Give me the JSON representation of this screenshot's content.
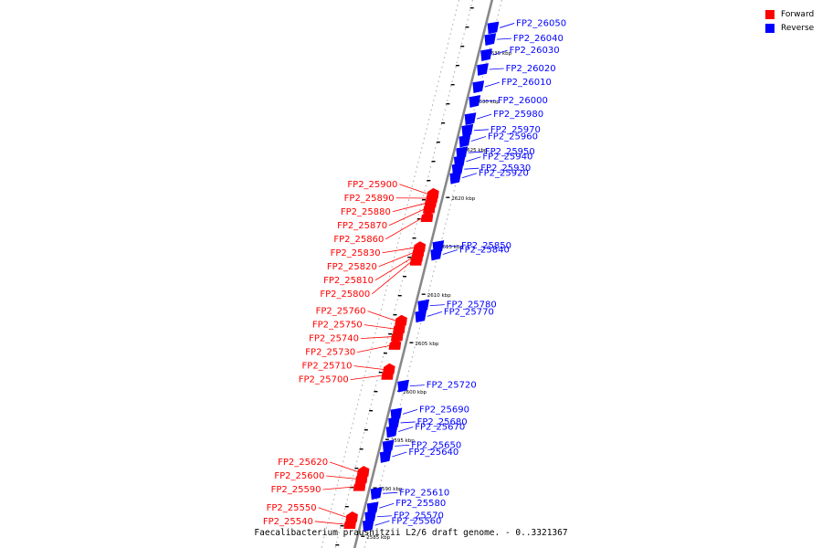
{
  "colors": {
    "forward": "#ff0000",
    "reverse": "#0000ff",
    "backbone": "#888888",
    "dots": "#aaaaaa"
  },
  "legend": {
    "forward_label": "Forward",
    "reverse_label": "Reverse"
  },
  "caption": "Faecalibacterium prausnitzii L2/6 draft genome. - 0..3321367",
  "ticks": [
    {
      "label": "2635 kbp",
      "kbp": 2635
    },
    {
      "label": "2630 kbp",
      "kbp": 2630
    },
    {
      "label": "2625 kbp",
      "kbp": 2625
    },
    {
      "label": "2620 kbp",
      "kbp": 2620
    },
    {
      "label": "2615 kbp",
      "kbp": 2615
    },
    {
      "label": "2610 kbp",
      "kbp": 2610
    },
    {
      "label": "2605 kbp",
      "kbp": 2605
    },
    {
      "label": "2600 kbp",
      "kbp": 2600
    },
    {
      "label": "2595 kbp",
      "kbp": 2595
    },
    {
      "label": "2590 kbp",
      "kbp": 2590
    },
    {
      "label": "2585 kbp",
      "kbp": 2585
    }
  ],
  "genes": {
    "reverse": [
      {
        "name": "FP2_26050",
        "kbp": 2637.6
      },
      {
        "name": "FP2_26040",
        "kbp": 2636.4
      },
      {
        "name": "FP2_26030",
        "kbp": 2634.8
      },
      {
        "name": "FP2_26020",
        "kbp": 2633.3
      },
      {
        "name": "FP2_26010",
        "kbp": 2631.5
      },
      {
        "name": "FP2_26000",
        "kbp": 2630.0
      },
      {
        "name": "FP2_25980",
        "kbp": 2628.2
      },
      {
        "name": "FP2_25970",
        "kbp": 2627.0
      },
      {
        "name": "FP2_25960",
        "kbp": 2625.9
      },
      {
        "name": "FP2_25950",
        "kbp": 2624.7
      },
      {
        "name": "FP2_25940",
        "kbp": 2623.8
      },
      {
        "name": "FP2_25930",
        "kbp": 2623.0
      },
      {
        "name": "FP2_25920",
        "kbp": 2622.1
      },
      {
        "name": "FP2_25850",
        "kbp": 2615.0
      },
      {
        "name": "FP2_25840",
        "kbp": 2614.2
      },
      {
        "name": "FP2_25780",
        "kbp": 2608.9
      },
      {
        "name": "FP2_25770",
        "kbp": 2607.8
      },
      {
        "name": "FP2_25720",
        "kbp": 2600.6
      },
      {
        "name": "FP2_25690",
        "kbp": 2597.7
      },
      {
        "name": "FP2_25680",
        "kbp": 2596.8
      },
      {
        "name": "FP2_25670",
        "kbp": 2595.9
      },
      {
        "name": "FP2_25650",
        "kbp": 2594.4
      },
      {
        "name": "FP2_25640",
        "kbp": 2593.3
      },
      {
        "name": "FP2_25610",
        "kbp": 2589.5
      },
      {
        "name": "FP2_25580",
        "kbp": 2588.0
      },
      {
        "name": "FP2_25570",
        "kbp": 2587.1
      },
      {
        "name": "FP2_25560",
        "kbp": 2586.2
      }
    ],
    "forward": [
      {
        "name": "FP2_25900",
        "kbp": 2620.4
      },
      {
        "name": "FP2_25890",
        "kbp": 2620.0
      },
      {
        "name": "FP2_25880",
        "kbp": 2619.5
      },
      {
        "name": "FP2_25870",
        "kbp": 2618.9
      },
      {
        "name": "FP2_25860",
        "kbp": 2618.0
      },
      {
        "name": "FP2_25830",
        "kbp": 2614.9
      },
      {
        "name": "FP2_25820",
        "kbp": 2614.4
      },
      {
        "name": "FP2_25810",
        "kbp": 2613.9
      },
      {
        "name": "FP2_25800",
        "kbp": 2613.5
      },
      {
        "name": "FP2_25760",
        "kbp": 2607.3
      },
      {
        "name": "FP2_25750",
        "kbp": 2606.5
      },
      {
        "name": "FP2_25740",
        "kbp": 2605.7
      },
      {
        "name": "FP2_25730",
        "kbp": 2604.8
      },
      {
        "name": "FP2_25710",
        "kbp": 2602.3
      },
      {
        "name": "FP2_25700",
        "kbp": 2601.7
      },
      {
        "name": "FP2_25620",
        "kbp": 2591.7
      },
      {
        "name": "FP2_25600",
        "kbp": 2591.0
      },
      {
        "name": "FP2_25590",
        "kbp": 2590.2
      },
      {
        "name": "FP2_25550",
        "kbp": 2587.0
      },
      {
        "name": "FP2_25540",
        "kbp": 2586.3
      }
    ]
  }
}
